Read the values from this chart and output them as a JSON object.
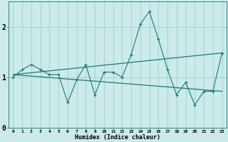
{
  "title": "",
  "xlabel": "Humidex (Indice chaleur)",
  "ylabel": "",
  "bg_color": "#cceaea",
  "grid_color": "#aad4d4",
  "line_color": "#1a7a6e",
  "xlim": [
    -0.5,
    23.5
  ],
  "ylim": [
    0,
    2.5
  ],
  "yticks": [
    0,
    1,
    2
  ],
  "xticks": [
    0,
    1,
    2,
    3,
    4,
    5,
    6,
    7,
    8,
    9,
    10,
    11,
    12,
    13,
    14,
    15,
    16,
    17,
    18,
    19,
    20,
    21,
    22,
    23
  ],
  "series1_x": [
    0,
    1,
    2,
    3,
    4,
    5,
    6,
    7,
    8,
    9,
    10,
    11,
    12,
    13,
    14,
    15,
    16,
    17,
    18,
    19,
    20,
    21,
    22,
    23
  ],
  "series1_y": [
    1.0,
    1.15,
    1.25,
    1.15,
    1.05,
    1.05,
    0.5,
    0.95,
    1.25,
    0.65,
    1.1,
    1.1,
    1.0,
    1.45,
    2.05,
    2.3,
    1.75,
    1.15,
    0.65,
    0.9,
    0.45,
    0.72,
    0.72,
    1.48
  ],
  "series2_x": [
    0,
    23
  ],
  "series2_y": [
    1.05,
    1.48
  ],
  "series3_x": [
    0,
    23
  ],
  "series3_y": [
    1.05,
    0.72
  ]
}
